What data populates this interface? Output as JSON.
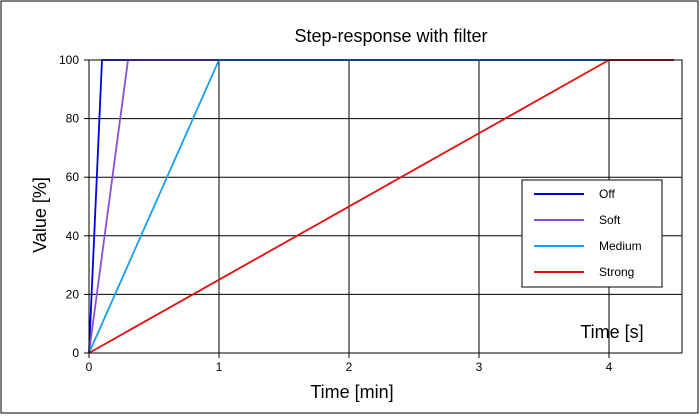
{
  "chart_data": {
    "type": "line",
    "title": "Step-response with filter",
    "xlabel": "Time [min]",
    "ylabel": "Value [%]",
    "inner_xlabel": "Time [s]",
    "xlim": [
      0,
      4.5
    ],
    "ylim": [
      0,
      100
    ],
    "xticks": [
      0,
      1,
      2,
      3,
      4
    ],
    "yticks": [
      0,
      20,
      40,
      60,
      80,
      100
    ],
    "grid": true,
    "legend_position": "right",
    "series": [
      {
        "name": "Off",
        "color": "#0000e0",
        "x": [
          0,
          0.1,
          4.5
        ],
        "y": [
          0,
          100,
          100
        ]
      },
      {
        "name": "Soft",
        "color": "#8a4fd8",
        "x": [
          0,
          0.3,
          4.5
        ],
        "y": [
          0,
          100,
          100
        ]
      },
      {
        "name": "Medium",
        "color": "#16a0e8",
        "x": [
          0,
          1,
          4.5
        ],
        "y": [
          0,
          100,
          100
        ]
      },
      {
        "name": "Strong",
        "color": "#e01010",
        "x": [
          0,
          4,
          4.5
        ],
        "y": [
          0,
          100,
          100
        ]
      }
    ]
  }
}
